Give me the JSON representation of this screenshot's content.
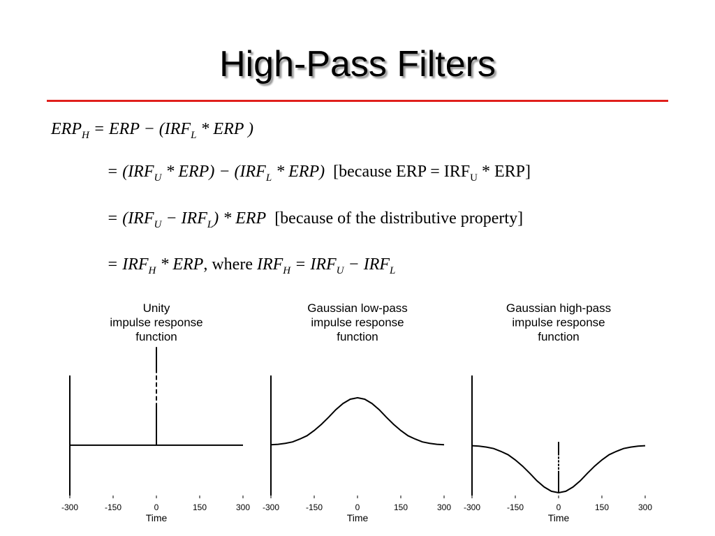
{
  "title": "High-Pass Filters",
  "equations": [
    [
      {
        "text": "ERP",
        "sub": "H"
      },
      {
        "text": " = ERP − (IRF",
        "sub": "L"
      },
      {
        "text": " * ERP )"
      }
    ],
    [
      {
        "text": "= (IRF",
        "sub": "U"
      },
      {
        "text": " * ERP) − (IRF",
        "sub": "L"
      },
      {
        "text": " * ERP)"
      },
      {
        "text": "  [because ERP = IRF",
        "sub": "U",
        "roman": true
      },
      {
        "text": " * ERP]",
        "roman": true
      }
    ],
    [
      {
        "text": "= (IRF",
        "sub": "U"
      },
      {
        "text": " − IRF",
        "sub": "L"
      },
      {
        "text": ") * ERP"
      },
      {
        "text": "  [because of the distributive property]",
        "roman": true
      }
    ],
    [
      {
        "text": "= IRF",
        "sub": "H"
      },
      {
        "text": " * ERP"
      },
      {
        "text": ", where ",
        "roman": true
      },
      {
        "text": "IRF",
        "sub": "H"
      },
      {
        "text": " = IRF",
        "sub": "U"
      },
      {
        "text": " − IRF",
        "sub": "L"
      }
    ]
  ],
  "chart_data": [
    {
      "type": "line",
      "title": [
        "Unity",
        "impulse response",
        "function"
      ],
      "xlabel": "Time",
      "xlim": [
        -300,
        300
      ],
      "xticks": [
        -300,
        -150,
        0,
        150,
        300
      ],
      "ylim": [
        -1.06,
        1.47
      ],
      "series": [
        {
          "color": "#000000",
          "x": [
            -300,
            300
          ],
          "values": [
            0,
            0
          ]
        }
      ],
      "spike": {
        "x": 0,
        "value": 2.07
      }
    },
    {
      "type": "line",
      "title": [
        "Gaussian low-pass",
        "impulse response",
        "function"
      ],
      "xlabel": "Time",
      "xlim": [
        -300,
        300
      ],
      "xticks": [
        -300,
        -150,
        0,
        150,
        300
      ],
      "ylim": [
        -1.06,
        1.47
      ],
      "series": [
        {
          "color": "#000000",
          "x": [
            -300,
            -275,
            -250,
            -225,
            -200,
            -175,
            -150,
            -125,
            -100,
            -75,
            -50,
            -25,
            0,
            25,
            50,
            75,
            100,
            125,
            150,
            175,
            200,
            225,
            250,
            275,
            300
          ],
          "values": [
            0.01,
            0.02,
            0.04,
            0.07,
            0.13,
            0.2,
            0.31,
            0.44,
            0.59,
            0.75,
            0.88,
            0.97,
            1,
            0.97,
            0.88,
            0.75,
            0.59,
            0.44,
            0.31,
            0.2,
            0.13,
            0.07,
            0.04,
            0.02,
            0.01
          ]
        }
      ]
    },
    {
      "type": "line",
      "title": [
        "Gaussian high-pass",
        "impulse response",
        "function"
      ],
      "xlabel": "Time",
      "xlim": [
        -300,
        300
      ],
      "xticks": [
        -300,
        -150,
        0,
        150,
        300
      ],
      "ylim": [
        -1.06,
        1.47
      ],
      "series": [
        {
          "color": "#000000",
          "x": [
            -300,
            -275,
            -250,
            -225,
            -200,
            -175,
            -150,
            -125,
            -100,
            -75,
            -50,
            -25,
            0,
            25,
            50,
            75,
            100,
            125,
            150,
            175,
            200,
            225,
            250,
            275,
            300
          ],
          "values": [
            -0.01,
            -0.02,
            -0.04,
            -0.07,
            -0.13,
            -0.2,
            -0.31,
            -0.44,
            -0.59,
            -0.75,
            -0.88,
            -0.97,
            -1,
            -0.97,
            -0.88,
            -0.75,
            -0.59,
            -0.44,
            -0.31,
            -0.2,
            -0.13,
            -0.07,
            -0.04,
            -0.02,
            -0.01
          ]
        }
      ],
      "spike": {
        "x": 0,
        "value": 1.07
      }
    }
  ]
}
